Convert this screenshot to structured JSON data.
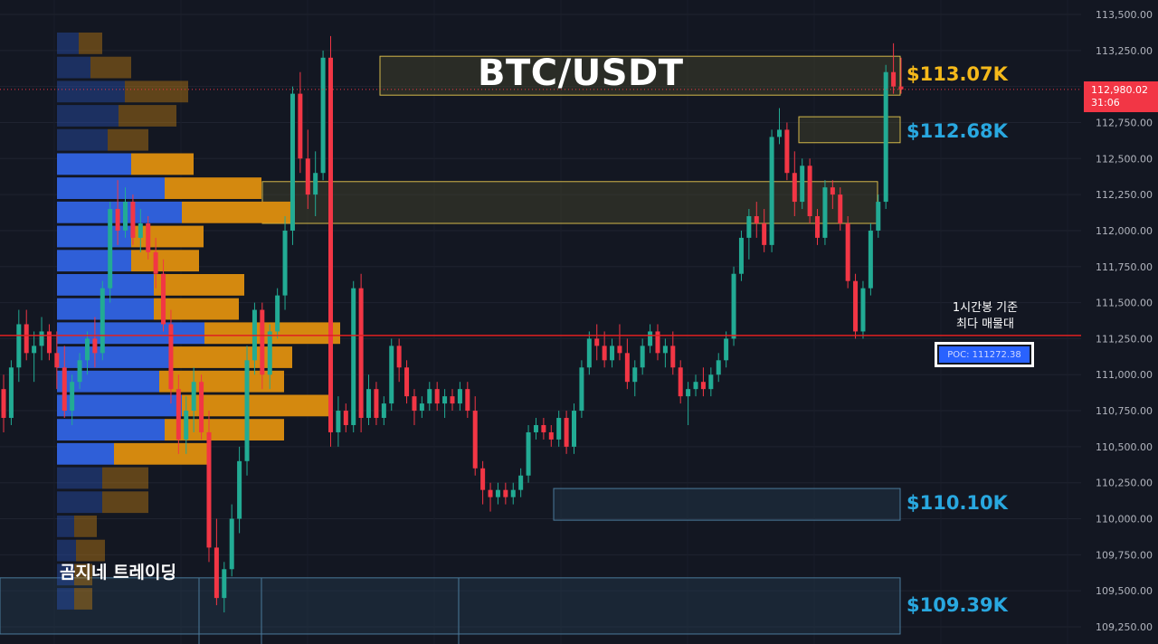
{
  "chart_data": {
    "type": "candlestick",
    "symbol_title": "BTC/USDT",
    "brand": "곰지네 트레이딩",
    "y_axis": {
      "ticks": [
        "113,500.00",
        "113,250.00",
        "113,000.00",
        "112,750.00",
        "112,500.00",
        "112,250.00",
        "112,000.00",
        "111,750.00",
        "111,500.00",
        "111,250.00",
        "111,000.00",
        "110,750.00",
        "110,500.00",
        "110,250.00",
        "110,000.00",
        "109,750.00",
        "109,500.00",
        "109,250.00"
      ],
      "range": [
        109200,
        113550
      ]
    },
    "current_price": {
      "price": "112,980.02",
      "countdown": "31:06",
      "value": 112980.02
    },
    "poc": {
      "note_line1": "1시간봉 기준",
      "note_line2": "최다 매물대",
      "label": "POC: 111272.38",
      "value": 111272.38
    },
    "levels": [
      {
        "label": "$113.07K",
        "value": 113070,
        "color": "#f5b91a"
      },
      {
        "label": "$112.68K",
        "value": 112680,
        "color": "#29a8e0"
      },
      {
        "label": "$110.10K",
        "value": 110100,
        "color": "#29a8e0"
      },
      {
        "label": "$109.39K",
        "value": 109390,
        "color": "#29a8e0"
      }
    ],
    "zones": [
      {
        "name": "resistance-113k",
        "from": 112940,
        "to": 113210,
        "color": "#d4b84a"
      },
      {
        "name": "resistance-112_7k",
        "from": 112610,
        "to": 112790,
        "color": "#d4b84a"
      },
      {
        "name": "supply-112_3k",
        "from": 112050,
        "to": 112340,
        "color": "#d4b84a"
      },
      {
        "name": "support-110_1k",
        "from": 109990,
        "to": 110210,
        "color": "#4a7a9a"
      },
      {
        "name": "support-109_4k",
        "from": 109200,
        "to": 109590,
        "color": "#4a7a9a"
      }
    ],
    "volume_profile": {
      "price_start": 113400,
      "step": 162,
      "rows": [
        {
          "buy": 24,
          "sell": 26
        },
        {
          "buy": 37,
          "sell": 45
        },
        {
          "buy": 75,
          "sell": 70
        },
        {
          "buy": 68,
          "sell": 64
        },
        {
          "buy": 56,
          "sell": 45
        },
        {
          "buy": 82,
          "sell": 69
        },
        {
          "buy": 119,
          "sell": 107
        },
        {
          "buy": 138,
          "sell": 125
        },
        {
          "buy": 82,
          "sell": 80
        },
        {
          "buy": 82,
          "sell": 75
        },
        {
          "buy": 107,
          "sell": 100
        },
        {
          "buy": 107,
          "sell": 94
        },
        {
          "buy": 163,
          "sell": 150
        },
        {
          "buy": 125,
          "sell": 135
        },
        {
          "buy": 113,
          "sell": 138
        },
        {
          "buy": 138,
          "sell": 163
        },
        {
          "buy": 119,
          "sell": 132
        },
        {
          "buy": 63,
          "sell": 105
        },
        {
          "buy": 50,
          "sell": 51
        },
        {
          "buy": 50,
          "sell": 51
        },
        {
          "buy": 19,
          "sell": 25
        },
        {
          "buy": 21,
          "sell": 32
        },
        {
          "buy": 19,
          "sell": 20
        },
        {
          "buy": 19,
          "sell": 20
        }
      ]
    },
    "candles": [
      {
        "o": 110900,
        "h": 111000,
        "l": 110600,
        "c": 110700
      },
      {
        "o": 110700,
        "h": 111100,
        "l": 110650,
        "c": 111050
      },
      {
        "o": 111050,
        "h": 111450,
        "l": 110950,
        "c": 111350
      },
      {
        "o": 111350,
        "h": 111450,
        "l": 111100,
        "c": 111150
      },
      {
        "o": 111150,
        "h": 111300,
        "l": 110950,
        "c": 111200
      },
      {
        "o": 111200,
        "h": 111400,
        "l": 111100,
        "c": 111300
      },
      {
        "o": 111300,
        "h": 111350,
        "l": 111100,
        "c": 111150
      },
      {
        "o": 111150,
        "h": 111300,
        "l": 110900,
        "c": 111050
      },
      {
        "o": 111050,
        "h": 111200,
        "l": 110700,
        "c": 110750
      },
      {
        "o": 110750,
        "h": 111000,
        "l": 110650,
        "c": 110950
      },
      {
        "o": 110950,
        "h": 111150,
        "l": 110900,
        "c": 111100
      },
      {
        "o": 111100,
        "h": 111300,
        "l": 111000,
        "c": 111250
      },
      {
        "o": 111250,
        "h": 111400,
        "l": 111050,
        "c": 111150
      },
      {
        "o": 111150,
        "h": 111650,
        "l": 111100,
        "c": 111600
      },
      {
        "o": 111600,
        "h": 112200,
        "l": 111500,
        "c": 112150
      },
      {
        "o": 112150,
        "h": 112350,
        "l": 111900,
        "c": 112000
      },
      {
        "o": 112000,
        "h": 112300,
        "l": 111950,
        "c": 112200
      },
      {
        "o": 112200,
        "h": 112250,
        "l": 111900,
        "c": 111950
      },
      {
        "o": 111950,
        "h": 112150,
        "l": 111850,
        "c": 112050
      },
      {
        "o": 112050,
        "h": 112100,
        "l": 111800,
        "c": 111850
      },
      {
        "o": 111850,
        "h": 111950,
        "l": 111600,
        "c": 111700
      },
      {
        "o": 111700,
        "h": 111800,
        "l": 111300,
        "c": 111350
      },
      {
        "o": 111350,
        "h": 111450,
        "l": 110800,
        "c": 110900
      },
      {
        "o": 110900,
        "h": 111000,
        "l": 110450,
        "c": 110550
      },
      {
        "o": 110550,
        "h": 110850,
        "l": 110450,
        "c": 110750
      },
      {
        "o": 110750,
        "h": 111050,
        "l": 110600,
        "c": 110950
      },
      {
        "o": 110950,
        "h": 111000,
        "l": 110550,
        "c": 110600
      },
      {
        "o": 110600,
        "h": 110750,
        "l": 109700,
        "c": 109800
      },
      {
        "o": 109800,
        "h": 110000,
        "l": 109400,
        "c": 109450
      },
      {
        "o": 109450,
        "h": 109700,
        "l": 109350,
        "c": 109650
      },
      {
        "o": 109650,
        "h": 110100,
        "l": 109600,
        "c": 110000
      },
      {
        "o": 110000,
        "h": 110500,
        "l": 109900,
        "c": 110400
      },
      {
        "o": 110400,
        "h": 111200,
        "l": 110300,
        "c": 111100
      },
      {
        "o": 111100,
        "h": 111500,
        "l": 111000,
        "c": 111450
      },
      {
        "o": 111450,
        "h": 111500,
        "l": 110900,
        "c": 111000
      },
      {
        "o": 111000,
        "h": 111350,
        "l": 110900,
        "c": 111300
      },
      {
        "o": 111300,
        "h": 111600,
        "l": 111250,
        "c": 111550
      },
      {
        "o": 111550,
        "h": 112100,
        "l": 111450,
        "c": 112000
      },
      {
        "o": 112000,
        "h": 113000,
        "l": 111900,
        "c": 112950
      },
      {
        "o": 112950,
        "h": 113100,
        "l": 112400,
        "c": 112500
      },
      {
        "o": 112500,
        "h": 112700,
        "l": 112150,
        "c": 112250
      },
      {
        "o": 112250,
        "h": 112550,
        "l": 112100,
        "c": 112400
      },
      {
        "o": 112400,
        "h": 113250,
        "l": 112350,
        "c": 113200
      },
      {
        "o": 113200,
        "h": 113350,
        "l": 110500,
        "c": 110600
      },
      {
        "o": 110600,
        "h": 110850,
        "l": 110500,
        "c": 110750
      },
      {
        "o": 110750,
        "h": 110800,
        "l": 110600,
        "c": 110650
      },
      {
        "o": 110650,
        "h": 111650,
        "l": 110600,
        "c": 111600
      },
      {
        "o": 111600,
        "h": 111700,
        "l": 110600,
        "c": 110700
      },
      {
        "o": 110700,
        "h": 111000,
        "l": 110650,
        "c": 110900
      },
      {
        "o": 110900,
        "h": 110950,
        "l": 110650,
        "c": 110700
      },
      {
        "o": 110700,
        "h": 110850,
        "l": 110650,
        "c": 110800
      },
      {
        "o": 110800,
        "h": 111250,
        "l": 110750,
        "c": 111200
      },
      {
        "o": 111200,
        "h": 111250,
        "l": 110950,
        "c": 111050
      },
      {
        "o": 111050,
        "h": 111100,
        "l": 110800,
        "c": 110850
      },
      {
        "o": 110850,
        "h": 110900,
        "l": 110650,
        "c": 110750
      },
      {
        "o": 110750,
        "h": 110850,
        "l": 110700,
        "c": 110800
      },
      {
        "o": 110800,
        "h": 110950,
        "l": 110750,
        "c": 110900
      },
      {
        "o": 110900,
        "h": 110950,
        "l": 110750,
        "c": 110800
      },
      {
        "o": 110800,
        "h": 110900,
        "l": 110700,
        "c": 110850
      },
      {
        "o": 110850,
        "h": 110900,
        "l": 110750,
        "c": 110800
      },
      {
        "o": 110800,
        "h": 110950,
        "l": 110750,
        "c": 110900
      },
      {
        "o": 110900,
        "h": 110950,
        "l": 110700,
        "c": 110750
      },
      {
        "o": 110750,
        "h": 110850,
        "l": 110300,
        "c": 110350
      },
      {
        "o": 110350,
        "h": 110400,
        "l": 110100,
        "c": 110200
      },
      {
        "o": 110200,
        "h": 110250,
        "l": 110050,
        "c": 110150
      },
      {
        "o": 110150,
        "h": 110250,
        "l": 110100,
        "c": 110200
      },
      {
        "o": 110200,
        "h": 110250,
        "l": 110100,
        "c": 110150
      },
      {
        "o": 110150,
        "h": 110250,
        "l": 110100,
        "c": 110200
      },
      {
        "o": 110200,
        "h": 110350,
        "l": 110150,
        "c": 110300
      },
      {
        "o": 110300,
        "h": 110650,
        "l": 110250,
        "c": 110600
      },
      {
        "o": 110600,
        "h": 110700,
        "l": 110550,
        "c": 110650
      },
      {
        "o": 110650,
        "h": 110700,
        "l": 110550,
        "c": 110600
      },
      {
        "o": 110600,
        "h": 110650,
        "l": 110500,
        "c": 110550
      },
      {
        "o": 110550,
        "h": 110750,
        "l": 110500,
        "c": 110700
      },
      {
        "o": 110700,
        "h": 110750,
        "l": 110450,
        "c": 110500
      },
      {
        "o": 110500,
        "h": 110800,
        "l": 110450,
        "c": 110750
      },
      {
        "o": 110750,
        "h": 111100,
        "l": 110700,
        "c": 111050
      },
      {
        "o": 111050,
        "h": 111300,
        "l": 111000,
        "c": 111250
      },
      {
        "o": 111250,
        "h": 111350,
        "l": 111100,
        "c": 111200
      },
      {
        "o": 111200,
        "h": 111300,
        "l": 111050,
        "c": 111100
      },
      {
        "o": 111100,
        "h": 111250,
        "l": 111050,
        "c": 111200
      },
      {
        "o": 111200,
        "h": 111350,
        "l": 111100,
        "c": 111150
      },
      {
        "o": 111150,
        "h": 111250,
        "l": 110900,
        "c": 110950
      },
      {
        "o": 110950,
        "h": 111100,
        "l": 110850,
        "c": 111050
      },
      {
        "o": 111050,
        "h": 111250,
        "l": 111000,
        "c": 111200
      },
      {
        "o": 111200,
        "h": 111350,
        "l": 111150,
        "c": 111300
      },
      {
        "o": 111300,
        "h": 111350,
        "l": 111100,
        "c": 111150
      },
      {
        "o": 111150,
        "h": 111250,
        "l": 111050,
        "c": 111200
      },
      {
        "o": 111200,
        "h": 111300,
        "l": 111000,
        "c": 111050
      },
      {
        "o": 111050,
        "h": 111100,
        "l": 110800,
        "c": 110850
      },
      {
        "o": 110850,
        "h": 110950,
        "l": 110650,
        "c": 110900
      },
      {
        "o": 110900,
        "h": 111000,
        "l": 110850,
        "c": 110950
      },
      {
        "o": 110950,
        "h": 111050,
        "l": 110850,
        "c": 110900
      },
      {
        "o": 110900,
        "h": 111050,
        "l": 110850,
        "c": 111000
      },
      {
        "o": 111000,
        "h": 111150,
        "l": 110950,
        "c": 111100
      },
      {
        "o": 111100,
        "h": 111300,
        "l": 111050,
        "c": 111250
      },
      {
        "o": 111250,
        "h": 111750,
        "l": 111200,
        "c": 111700
      },
      {
        "o": 111700,
        "h": 112000,
        "l": 111650,
        "c": 111950
      },
      {
        "o": 111950,
        "h": 112150,
        "l": 111800,
        "c": 112100
      },
      {
        "o": 112100,
        "h": 112200,
        "l": 111950,
        "c": 112050
      },
      {
        "o": 112050,
        "h": 112150,
        "l": 111850,
        "c": 111900
      },
      {
        "o": 111900,
        "h": 112700,
        "l": 111850,
        "c": 112650
      },
      {
        "o": 112650,
        "h": 112850,
        "l": 112600,
        "c": 112700
      },
      {
        "o": 112700,
        "h": 112750,
        "l": 112350,
        "c": 112400
      },
      {
        "o": 112400,
        "h": 112550,
        "l": 112100,
        "c": 112200
      },
      {
        "o": 112200,
        "h": 112500,
        "l": 112150,
        "c": 112450
      },
      {
        "o": 112450,
        "h": 112500,
        "l": 112050,
        "c": 112100
      },
      {
        "o": 112100,
        "h": 112150,
        "l": 111900,
        "c": 111950
      },
      {
        "o": 111950,
        "h": 112350,
        "l": 111900,
        "c": 112300
      },
      {
        "o": 112300,
        "h": 112350,
        "l": 112150,
        "c": 112250
      },
      {
        "o": 112250,
        "h": 112300,
        "l": 112000,
        "c": 112050
      },
      {
        "o": 112050,
        "h": 112100,
        "l": 111600,
        "c": 111650
      },
      {
        "o": 111650,
        "h": 111700,
        "l": 111250,
        "c": 111300
      },
      {
        "o": 111300,
        "h": 111650,
        "l": 111250,
        "c": 111600
      },
      {
        "o": 111600,
        "h": 112050,
        "l": 111550,
        "c": 112000
      },
      {
        "o": 112000,
        "h": 112250,
        "l": 111950,
        "c": 112200
      },
      {
        "o": 112200,
        "h": 113150,
        "l": 112150,
        "c": 113100
      },
      {
        "o": 113100,
        "h": 113300,
        "l": 112950,
        "c": 113000
      },
      {
        "o": 113000,
        "h": 113200,
        "l": 112950,
        "c": 112980
      }
    ]
  }
}
